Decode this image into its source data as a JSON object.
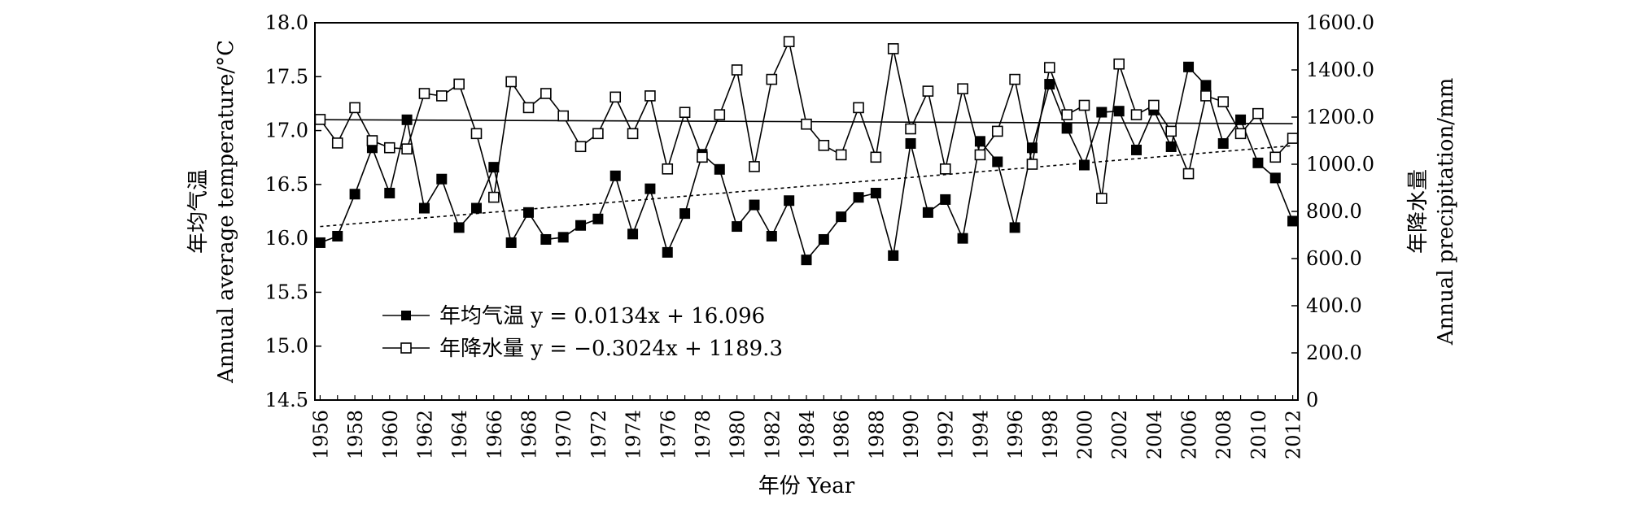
{
  "chart_data": {
    "type": "line",
    "title": "",
    "xlabel": "年份 Year",
    "ylabel_left": "年均气温\nAnnual average temperature/°C",
    "ylabel_right": "年降水量\nAnnual precipitation/mm",
    "x": [
      1956,
      1957,
      1958,
      1959,
      1960,
      1961,
      1962,
      1963,
      1964,
      1965,
      1966,
      1967,
      1968,
      1969,
      1970,
      1971,
      1972,
      1973,
      1974,
      1975,
      1976,
      1977,
      1978,
      1979,
      1980,
      1981,
      1982,
      1983,
      1984,
      1985,
      1986,
      1987,
      1988,
      1989,
      1990,
      1991,
      1992,
      1993,
      1994,
      1995,
      1996,
      1997,
      1998,
      1999,
      2000,
      2001,
      2002,
      2003,
      2004,
      2005,
      2006,
      2007,
      2008,
      2009,
      2010,
      2011,
      2012
    ],
    "xlim": [
      1955.7,
      2012.3
    ],
    "xticks": [
      "1956",
      "1958",
      "1960",
      "1962",
      "1964",
      "1966",
      "1968",
      "1970",
      "1972",
      "1974",
      "1976",
      "1978",
      "1980",
      "1982",
      "1984",
      "1986",
      "1988",
      "1990",
      "1992",
      "1994",
      "1996",
      "1998",
      "2000",
      "2002",
      "2004",
      "2006",
      "2008",
      "2010",
      "2012"
    ],
    "ylim_left": [
      14.5,
      18.0
    ],
    "yticks_left": [
      "14.5",
      "15.0",
      "15.5",
      "16.0",
      "16.5",
      "17.0",
      "17.5",
      "18.0"
    ],
    "ylim_right": [
      0,
      1600
    ],
    "yticks_right": [
      "0",
      "200.0",
      "400.0",
      "600.0",
      "800.0",
      "1000.0",
      "1200.0",
      "1400.0",
      "1600.0"
    ],
    "grid": false,
    "legend_position": "bottom-left",
    "series": [
      {
        "name": "年均气温",
        "equation": "y = 0.0134x + 16.096",
        "axis": "left",
        "marker": "filled-square",
        "trend": {
          "slope": 0.0134,
          "intercept": 16.096
        },
        "values": [
          15.96,
          16.02,
          16.41,
          16.84,
          16.42,
          17.1,
          16.28,
          16.55,
          16.1,
          16.28,
          16.66,
          15.96,
          16.24,
          15.99,
          16.01,
          16.12,
          16.18,
          16.58,
          16.04,
          16.46,
          15.87,
          16.23,
          16.78,
          16.64,
          16.11,
          16.31,
          16.02,
          16.35,
          15.8,
          15.99,
          16.2,
          16.38,
          16.42,
          15.84,
          16.88,
          16.24,
          16.36,
          16.0,
          16.9,
          16.71,
          16.1,
          16.84,
          17.43,
          17.02,
          16.68,
          17.17,
          17.18,
          16.82,
          17.19,
          16.85,
          17.59,
          17.42,
          16.88,
          17.1,
          16.7,
          16.56,
          16.16
        ]
      },
      {
        "name": "年降水量",
        "equation": "y = −0.3024x + 1189.3",
        "axis": "right",
        "marker": "open-square",
        "trend": {
          "slope": -0.3024,
          "intercept": 1189.3
        },
        "values": [
          1190,
          1090,
          1240,
          1100,
          1070,
          1065,
          1300,
          1290,
          1340,
          1130,
          860,
          1350,
          1240,
          1300,
          1205,
          1075,
          1130,
          1285,
          1130,
          1290,
          980,
          1220,
          1030,
          1210,
          1400,
          990,
          1360,
          1520,
          1170,
          1080,
          1040,
          1240,
          1030,
          1490,
          1150,
          1310,
          980,
          1320,
          1040,
          1140,
          1360,
          1000,
          1410,
          1210,
          1250,
          855,
          1425,
          1210,
          1250,
          1140,
          960,
          1290,
          1265,
          1130,
          1215,
          1030,
          1110
        ]
      }
    ]
  }
}
